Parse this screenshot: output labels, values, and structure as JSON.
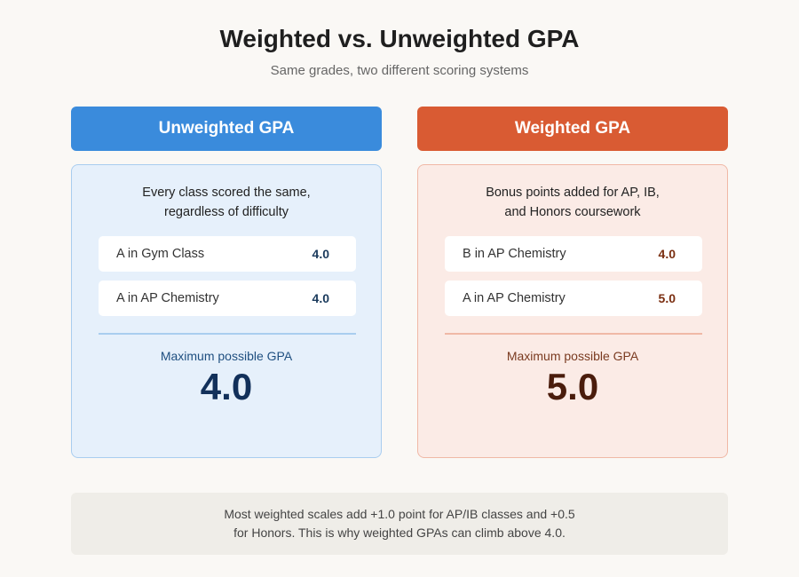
{
  "header": {
    "title": "Weighted vs. Unweighted GPA",
    "subtitle": "Same grades, two different scoring systems"
  },
  "panels": [
    {
      "heading": "Unweighted GPA",
      "description": [
        "Every class scored the same,",
        "regardless of difficulty"
      ],
      "rows": [
        {
          "label": "A in Gym Class",
          "value": "4.0"
        },
        {
          "label": "A in AP Chemistry",
          "value": "4.0"
        }
      ],
      "max_label": "Maximum possible GPA",
      "max_value": "4.0"
    },
    {
      "heading": "Weighted GPA",
      "description": [
        "Bonus points added for AP, IB,",
        "and Honors coursework"
      ],
      "rows": [
        {
          "label": "B in AP Chemistry",
          "value": "4.0"
        },
        {
          "label": "A in AP Chemistry",
          "value": "5.0"
        }
      ],
      "max_label": "Maximum possible GPA",
      "max_value": "5.0"
    }
  ],
  "footnote": [
    "Most weighted scales add +1.0 point for AP/IB classes and +0.5",
    "for Honors. This is why weighted GPAs can climb above 4.0."
  ]
}
